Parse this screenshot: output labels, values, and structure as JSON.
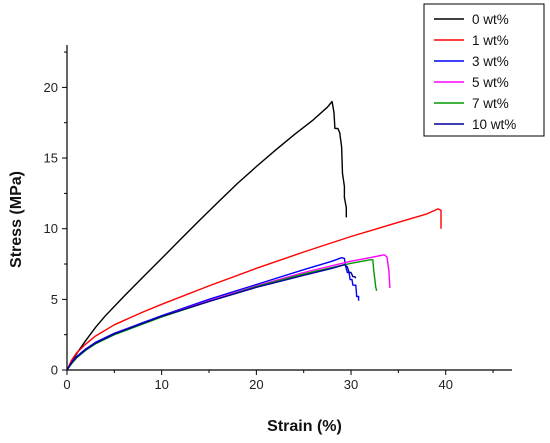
{
  "chart_data": {
    "type": "line",
    "xlabel": "Strain (%)",
    "ylabel": "Stress (MPa)",
    "xlim": [
      0,
      47
    ],
    "ylim": [
      0,
      23
    ],
    "xticks": [
      0,
      10,
      20,
      30,
      40
    ],
    "yticks": [
      0,
      5,
      10,
      15,
      20
    ],
    "legend_position": "top-right",
    "series": [
      {
        "name": "0 wt%",
        "color": "#000000",
        "points": [
          [
            0,
            0
          ],
          [
            0.5,
            0.6
          ],
          [
            1,
            1.15
          ],
          [
            2,
            2.1
          ],
          [
            3,
            3.0
          ],
          [
            4,
            3.8
          ],
          [
            6,
            5.2
          ],
          [
            8,
            6.55
          ],
          [
            10,
            7.9
          ],
          [
            12,
            9.25
          ],
          [
            14,
            10.6
          ],
          [
            16,
            11.9
          ],
          [
            18,
            13.2
          ],
          [
            20,
            14.4
          ],
          [
            22,
            15.55
          ],
          [
            24,
            16.65
          ],
          [
            26,
            17.7
          ],
          [
            27.5,
            18.6
          ],
          [
            28,
            19.0
          ],
          [
            28.2,
            18.2
          ],
          [
            28.3,
            17.1
          ],
          [
            28.6,
            17.1
          ],
          [
            28.8,
            16.8
          ],
          [
            29.0,
            15.8
          ],
          [
            29.1,
            13.9
          ],
          [
            29.3,
            13.0
          ],
          [
            29.3,
            12.2
          ],
          [
            29.5,
            11.5
          ],
          [
            29.5,
            10.8
          ]
        ]
      },
      {
        "name": "1 wt%",
        "color": "#ff0000",
        "points": [
          [
            0,
            0
          ],
          [
            0.5,
            0.7
          ],
          [
            1,
            1.2
          ],
          [
            2,
            1.85
          ],
          [
            3,
            2.4
          ],
          [
            5,
            3.2
          ],
          [
            8,
            4.1
          ],
          [
            10,
            4.65
          ],
          [
            15,
            5.95
          ],
          [
            20,
            7.2
          ],
          [
            25,
            8.35
          ],
          [
            30,
            9.45
          ],
          [
            35,
            10.45
          ],
          [
            38,
            11.05
          ],
          [
            39.2,
            11.4
          ],
          [
            39.5,
            11.3
          ],
          [
            39.5,
            10.0
          ]
        ]
      },
      {
        "name": "3 wt%",
        "color": "#0000ff",
        "points": [
          [
            0,
            0
          ],
          [
            0.5,
            0.55
          ],
          [
            1,
            0.95
          ],
          [
            2,
            1.5
          ],
          [
            3,
            1.95
          ],
          [
            5,
            2.6
          ],
          [
            8,
            3.35
          ],
          [
            10,
            3.85
          ],
          [
            15,
            5.0
          ],
          [
            20,
            6.05
          ],
          [
            25,
            7.1
          ],
          [
            28,
            7.7
          ],
          [
            29,
            7.95
          ],
          [
            29.3,
            7.9
          ],
          [
            29.4,
            7.4
          ],
          [
            29.6,
            6.9
          ],
          [
            29.8,
            6.9
          ],
          [
            29.9,
            6.4
          ],
          [
            30.1,
            6.4
          ],
          [
            30.2,
            6.0
          ],
          [
            30.5,
            6.0
          ],
          [
            30.6,
            5.2
          ],
          [
            30.8,
            5.2
          ],
          [
            30.8,
            4.9
          ]
        ]
      },
      {
        "name": "5 wt%",
        "color": "#ff00ff",
        "points": [
          [
            0,
            0
          ],
          [
            0.5,
            0.5
          ],
          [
            1,
            0.9
          ],
          [
            2,
            1.45
          ],
          [
            3,
            1.9
          ],
          [
            5,
            2.55
          ],
          [
            8,
            3.3
          ],
          [
            10,
            3.8
          ],
          [
            15,
            4.9
          ],
          [
            20,
            5.95
          ],
          [
            25,
            6.9
          ],
          [
            30,
            7.7
          ],
          [
            32,
            7.95
          ],
          [
            33.5,
            8.15
          ],
          [
            33.8,
            8.0
          ],
          [
            34.0,
            7.0
          ],
          [
            34.1,
            5.8
          ]
        ]
      },
      {
        "name": "7 wt%",
        "color": "#009900",
        "points": [
          [
            0,
            0
          ],
          [
            0.5,
            0.45
          ],
          [
            1,
            0.85
          ],
          [
            2,
            1.4
          ],
          [
            3,
            1.85
          ],
          [
            5,
            2.5
          ],
          [
            8,
            3.25
          ],
          [
            10,
            3.75
          ],
          [
            15,
            4.85
          ],
          [
            20,
            5.9
          ],
          [
            25,
            6.8
          ],
          [
            30,
            7.55
          ],
          [
            32,
            7.8
          ],
          [
            32.3,
            7.8
          ],
          [
            32.4,
            7.0
          ],
          [
            32.6,
            5.9
          ],
          [
            32.7,
            5.6
          ]
        ]
      },
      {
        "name": "10 wt%",
        "color": "#000099",
        "points": [
          [
            0,
            0
          ],
          [
            0.5,
            0.5
          ],
          [
            1,
            0.9
          ],
          [
            2,
            1.45
          ],
          [
            3,
            1.9
          ],
          [
            5,
            2.55
          ],
          [
            8,
            3.3
          ],
          [
            10,
            3.8
          ],
          [
            15,
            4.85
          ],
          [
            20,
            5.85
          ],
          [
            25,
            6.7
          ],
          [
            28,
            7.2
          ],
          [
            29.3,
            7.45
          ],
          [
            29.6,
            7.3
          ],
          [
            29.8,
            6.9
          ],
          [
            30.0,
            6.9
          ],
          [
            30.2,
            6.6
          ],
          [
            30.4,
            6.6
          ],
          [
            30.5,
            6.5
          ]
        ]
      }
    ]
  }
}
